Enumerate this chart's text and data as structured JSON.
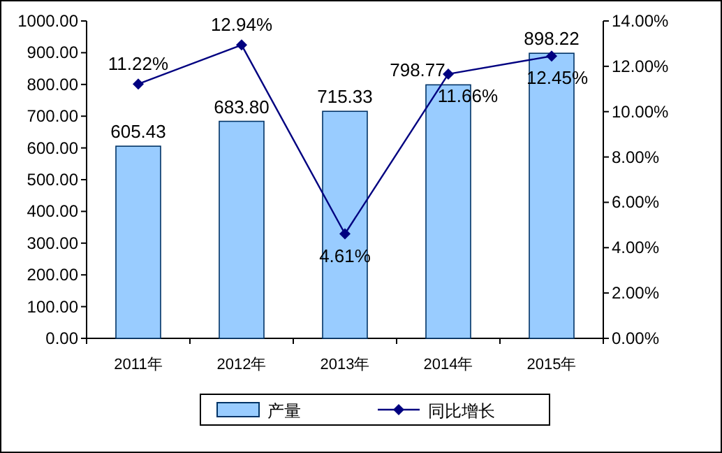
{
  "chart_data": {
    "type": "bar",
    "categories": [
      "2011年",
      "2012年",
      "2013年",
      "2014年",
      "2015年"
    ],
    "series": [
      {
        "name": "产量",
        "color": "#99ccff",
        "values": [
          605.43,
          683.8,
          715.33,
          798.77,
          898.22
        ],
        "value_labels": [
          "605.43",
          "683.80",
          "715.33",
          "798.77",
          "898.22"
        ]
      },
      {
        "name": "同比增长",
        "type": "line",
        "axis": "y2",
        "color": "#000080",
        "marker": "diamond",
        "values": [
          11.22,
          12.94,
          4.61,
          11.66,
          12.45
        ],
        "value_labels": [
          "11.22%",
          "12.94%",
          "4.61%",
          "11.66%",
          "12.45%"
        ]
      }
    ],
    "ylim": [
      0,
      1000
    ],
    "yticks": [
      {
        "value": 0,
        "label": "0.00"
      },
      {
        "value": 100,
        "label": "100.00"
      },
      {
        "value": 200,
        "label": "200.00"
      },
      {
        "value": 300,
        "label": "300.00"
      },
      {
        "value": 400,
        "label": "400.00"
      },
      {
        "value": 500,
        "label": "500.00"
      },
      {
        "value": 600,
        "label": "600.00"
      },
      {
        "value": 700,
        "label": "700.00"
      },
      {
        "value": 800,
        "label": "800.00"
      },
      {
        "value": 900,
        "label": "900.00"
      },
      {
        "value": 1000,
        "label": "1000.00"
      }
    ],
    "y2lim": [
      0,
      14
    ],
    "y2ticks": [
      {
        "value": 0,
        "label": "0.00%"
      },
      {
        "value": 2,
        "label": "2.00%"
      },
      {
        "value": 4,
        "label": "4.00%"
      },
      {
        "value": 6,
        "label": "6.00%"
      },
      {
        "value": 8,
        "label": "8.00%"
      },
      {
        "value": 10,
        "label": "10.00%"
      },
      {
        "value": 12,
        "label": "12.00%"
      },
      {
        "value": 14,
        "label": "14.00%"
      }
    ],
    "legend": "bottom",
    "grid": false
  }
}
